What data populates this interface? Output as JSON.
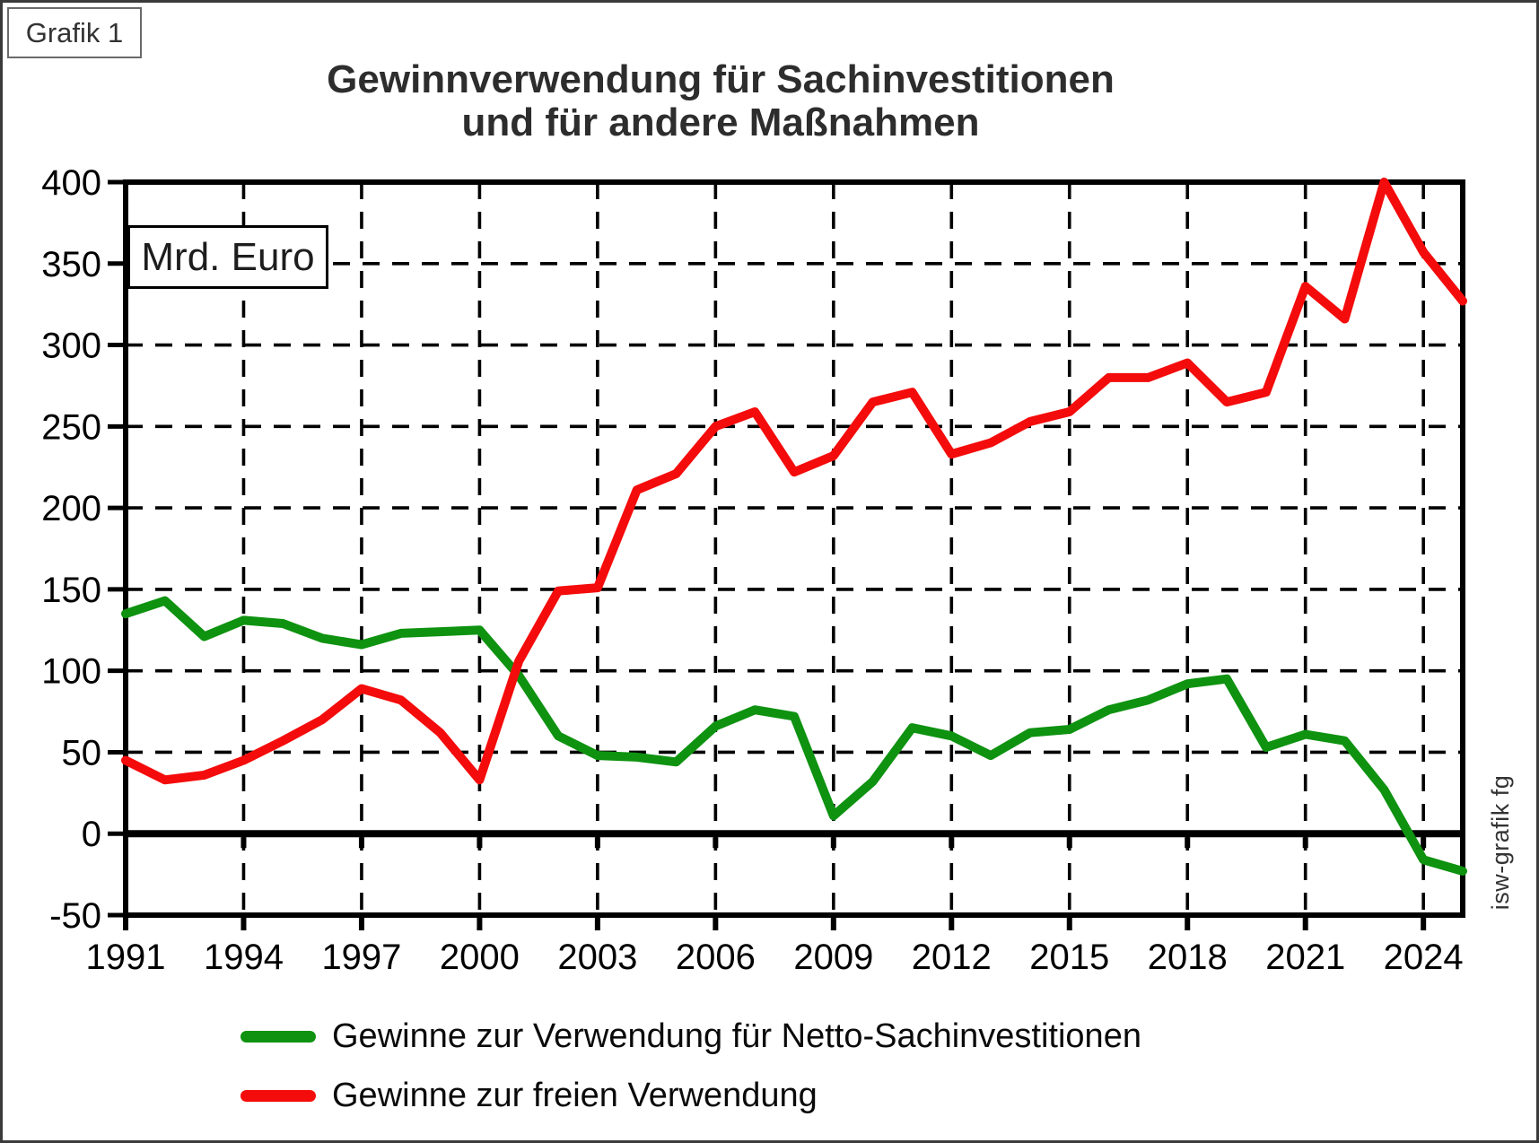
{
  "frame": {
    "grafik_label": "Grafik 1"
  },
  "title": {
    "line1": "Gewinnverwendung für Sachinvestitionen",
    "line2": "und für andere Maßnahmen"
  },
  "unit_label": "Mrd. Euro",
  "watermark": "isw-grafik fg",
  "legend": [
    {
      "label": "Gewinne zur Verwendung für Netto-Sachinvestitionen",
      "color": "#0e9210"
    },
    {
      "label": "Gewinne zur freien Verwendung",
      "color": "#f40b0b"
    }
  ],
  "chart_data": {
    "type": "line",
    "title": "Gewinnverwendung für Sachinvestitionen und für andere Maßnahmen",
    "xlabel": "",
    "ylabel": "Mrd. Euro",
    "xlim": [
      1991,
      2025
    ],
    "ylim": [
      -50,
      400
    ],
    "xticks": [
      1991,
      1994,
      1997,
      2000,
      2003,
      2006,
      2009,
      2012,
      2015,
      2018,
      2021,
      2024
    ],
    "yticks": [
      -50,
      0,
      50,
      100,
      150,
      200,
      250,
      300,
      350,
      400
    ],
    "grid": true,
    "legend_position": "bottom",
    "x": [
      1991,
      1992,
      1993,
      1994,
      1995,
      1996,
      1997,
      1998,
      1999,
      2000,
      2001,
      2002,
      2003,
      2004,
      2005,
      2006,
      2007,
      2008,
      2009,
      2010,
      2011,
      2012,
      2013,
      2014,
      2015,
      2016,
      2017,
      2018,
      2019,
      2020,
      2021,
      2022,
      2023,
      2024,
      2025
    ],
    "series": [
      {
        "name": "Gewinne zur Verwendung für Netto-Sachinvestitionen",
        "color": "#0e9210",
        "values": [
          135,
          143,
          121,
          131,
          129,
          120,
          116,
          123,
          124,
          125,
          97,
          60,
          48,
          47,
          44,
          66,
          76,
          72,
          11,
          32,
          65,
          60,
          48,
          62,
          64,
          76,
          82,
          92,
          95,
          53,
          61,
          57,
          27,
          -16,
          -23
        ]
      },
      {
        "name": "Gewinne zur freien Verwendung",
        "color": "#f40b0b",
        "values": [
          45,
          33,
          36,
          45,
          57,
          70,
          89,
          82,
          62,
          33,
          106,
          149,
          151,
          211,
          221,
          250,
          259,
          222,
          232,
          265,
          271,
          233,
          240,
          253,
          259,
          280,
          280,
          289,
          265,
          271,
          336,
          316,
          400,
          357,
          327
        ]
      }
    ]
  }
}
